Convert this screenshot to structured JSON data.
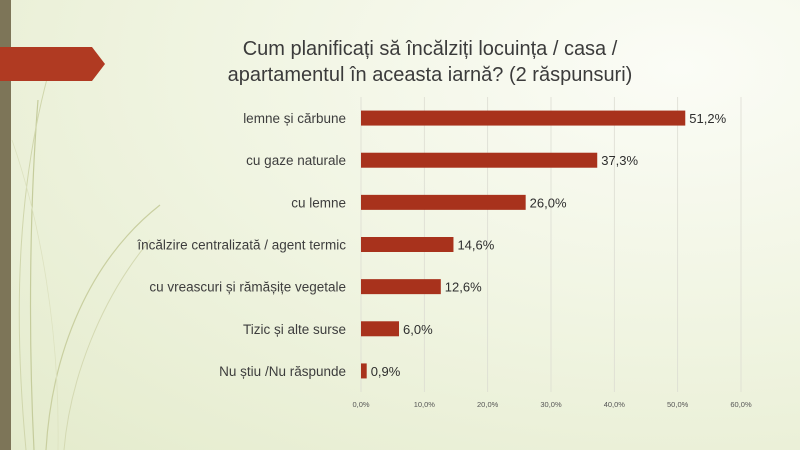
{
  "slide": {
    "title_line1": "Cum planificați să încălziți locuința / casa /",
    "title_line2": "apartamentul în aceasta iarnă? (2 răspunsuri)"
  },
  "colors": {
    "bar": "#a8321c",
    "arrow": "#b03a22",
    "strip": "#7d7558",
    "grid": "#dcdcd2"
  },
  "chart_data": {
    "type": "bar",
    "orientation": "horizontal",
    "categories": [
      "lemne și cărbune",
      "cu gaze naturale",
      "cu lemne",
      "încălzire centralizată / agent termic",
      "cu vreascuri și rămășițe vegetale",
      "Tizic și alte surse",
      "Nu știu /Nu răspunde"
    ],
    "values": [
      51.2,
      37.3,
      26.0,
      14.6,
      12.6,
      6.0,
      0.9
    ],
    "value_labels": [
      "51,2%",
      "37,3%",
      "26,0%",
      "14,6%",
      "12,6%",
      "6,0%",
      "0,9%"
    ],
    "xlim": [
      0,
      60
    ],
    "ticks": [
      0,
      10,
      20,
      30,
      40,
      50,
      60
    ],
    "tick_labels": [
      "0,0%",
      "10,0%",
      "20,0%",
      "30,0%",
      "40,0%",
      "50,0%",
      "60,0%"
    ],
    "grid": true,
    "title": "Cum planificați să încălziți locuința / casa / apartamentul în aceasta iarnă? (2 răspunsuri)",
    "xlabel": "",
    "ylabel": ""
  }
}
